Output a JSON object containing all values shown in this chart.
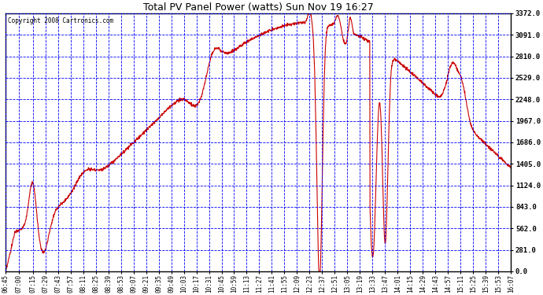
{
  "title": "Total PV Panel Power (watts) Sun Nov 19 16:27",
  "copyright": "Copyright 2008 Cartronics.com",
  "line_color": "#cc0000",
  "bg_color": "#ffffff",
  "plot_bg_color": "#ffffff",
  "grid_color": "#0000ff",
  "ylim": [
    0.0,
    3372.0
  ],
  "yticks": [
    0.0,
    281.0,
    562.0,
    843.0,
    1124.0,
    1405.0,
    1686.0,
    1967.0,
    2248.0,
    2529.0,
    2810.0,
    3091.0,
    3372.0
  ],
  "x_labels": [
    "06:45",
    "07:00",
    "07:15",
    "07:29",
    "07:43",
    "07:57",
    "08:11",
    "08:25",
    "08:39",
    "08:53",
    "09:07",
    "09:21",
    "09:35",
    "09:49",
    "10:03",
    "10:17",
    "10:31",
    "10:45",
    "10:59",
    "11:13",
    "11:27",
    "11:41",
    "11:55",
    "12:09",
    "12:23",
    "12:37",
    "12:51",
    "13:05",
    "13:19",
    "13:33",
    "13:47",
    "14:01",
    "14:15",
    "14:29",
    "14:43",
    "14:57",
    "15:11",
    "15:25",
    "15:39",
    "15:53",
    "16:07"
  ],
  "lw": 0.8
}
